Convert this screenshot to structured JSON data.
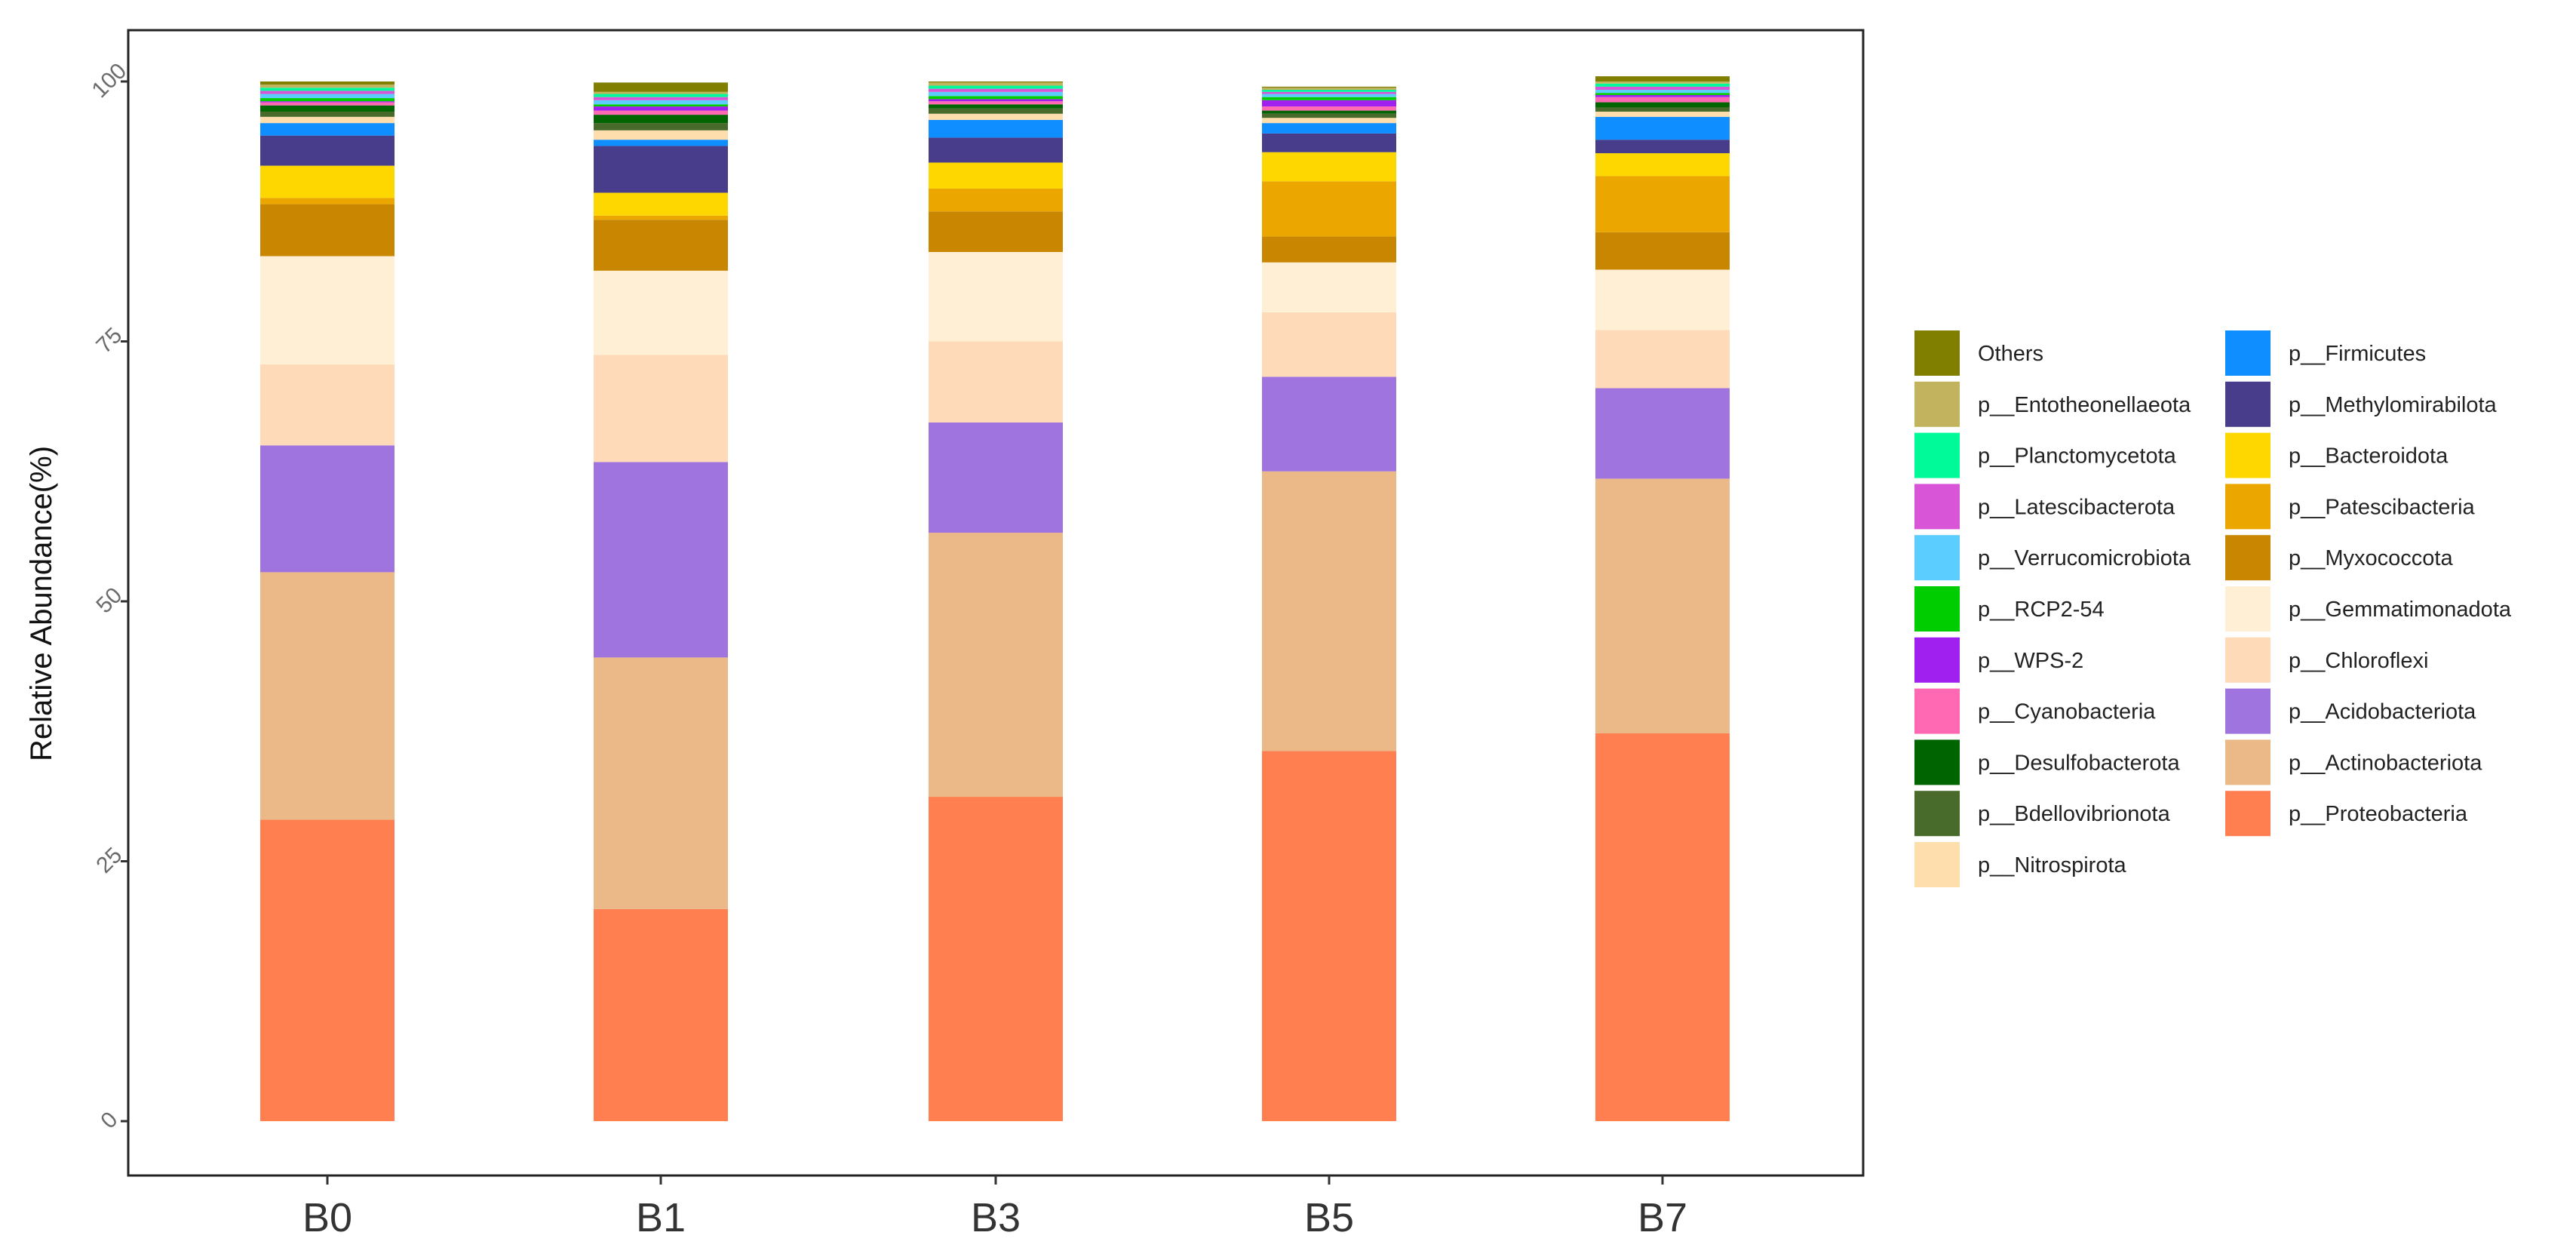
{
  "chart_data": {
    "type": "stacked-bar",
    "title": "",
    "xlabel": "",
    "ylabel": "Relative Abundance(%)",
    "ylim": [
      0,
      100
    ],
    "yticks": [
      "0",
      "25",
      "50",
      "75",
      "100"
    ],
    "categories": [
      "B0",
      "B1",
      "B3",
      "B5",
      "B7"
    ],
    "series": [
      {
        "name": "p__Proteobacteria",
        "color": "#FF7F50",
        "values": [
          29.0,
          20.4,
          31.2,
          35.6,
          37.3
        ]
      },
      {
        "name": "p__Actinobacteriota",
        "color": "#EBB887",
        "values": [
          23.8,
          24.2,
          25.4,
          26.9,
          24.5
        ]
      },
      {
        "name": "p__Acidobacteriota",
        "color": "#A074DE",
        "values": [
          12.2,
          18.8,
          10.6,
          9.1,
          8.7
        ]
      },
      {
        "name": "p__Chloroflexi",
        "color": "#FFDAB9",
        "values": [
          7.8,
          10.3,
          7.8,
          6.2,
          5.6
        ]
      },
      {
        "name": "p__Gemmatimonadota",
        "color": "#FFEFD5",
        "values": [
          10.4,
          8.1,
          8.6,
          4.8,
          5.8
        ]
      },
      {
        "name": "p__Myxococcota",
        "color": "#C98600",
        "values": [
          5.0,
          4.9,
          3.9,
          2.5,
          3.6
        ]
      },
      {
        "name": "p__Patescibacteria",
        "color": "#EBA600",
        "values": [
          0.6,
          0.4,
          2.2,
          5.3,
          5.4
        ]
      },
      {
        "name": "p__Bacteroidota",
        "color": "#FFD700",
        "values": [
          3.1,
          2.2,
          2.5,
          2.8,
          2.2
        ]
      },
      {
        "name": "p__Methylomirabilota",
        "color": "#483D8B",
        "values": [
          2.9,
          4.5,
          2.4,
          1.8,
          1.3
        ]
      },
      {
        "name": "p__Firmicutes",
        "color": "#0F8FFF",
        "values": [
          1.2,
          0.6,
          1.7,
          1.0,
          2.2
        ]
      },
      {
        "name": "p__Nitrospirota",
        "color": "#FFDEAD",
        "values": [
          0.6,
          0.9,
          0.6,
          0.5,
          0.5
        ]
      },
      {
        "name": "p__Bdellovibrionota",
        "color": "#486A2A",
        "values": [
          0.5,
          0.7,
          0.5,
          0.4,
          0.4
        ]
      },
      {
        "name": "p__Desulfobacterota",
        "color": "#006400",
        "values": [
          0.6,
          0.8,
          0.4,
          0.3,
          0.5
        ]
      },
      {
        "name": "p__Cyanobacteria",
        "color": "#FF69B4",
        "values": [
          0.3,
          0.4,
          0.3,
          0.4,
          0.5
        ]
      },
      {
        "name": "p__WPS-2",
        "color": "#A020F0",
        "values": [
          0.1,
          0.4,
          0.2,
          0.6,
          0.2
        ]
      },
      {
        "name": "p__RCP2-54",
        "color": "#00CD00",
        "values": [
          0.3,
          0.2,
          0.3,
          0.3,
          0.2
        ]
      },
      {
        "name": "p__Verrucomicrobiota",
        "color": "#5CCDFF",
        "values": [
          0.4,
          0.4,
          0.4,
          0.3,
          0.3
        ]
      },
      {
        "name": "p__Latescibacterota",
        "color": "#D855D8",
        "values": [
          0.3,
          0.3,
          0.3,
          0.2,
          0.3
        ]
      },
      {
        "name": "p__Planctomycetota",
        "color": "#00FA9A",
        "values": [
          0.3,
          0.3,
          0.3,
          0.2,
          0.3
        ]
      },
      {
        "name": "p__Entotheonellaeota",
        "color": "#C2B45E",
        "values": [
          0.3,
          0.2,
          0.3,
          0.2,
          0.2
        ]
      },
      {
        "name": "Others",
        "color": "#807F00",
        "values": [
          0.3,
          0.9,
          0.1,
          0.1,
          0.5
        ]
      }
    ],
    "legend": {
      "placement": "right",
      "columns": [
        [
          "Others",
          "p__Entotheonellaeota",
          "p__Planctomycetota",
          "p__Latescibacterota",
          "p__Verrucomicrobiota",
          "p__RCP2-54",
          "p__WPS-2",
          "p__Cyanobacteria",
          "p__Desulfobacterota",
          "p__Bdellovibrionota",
          "p__Nitrospirota"
        ],
        [
          "p__Firmicutes",
          "p__Methylomirabilota",
          "p__Bacteroidota",
          "p__Patescibacteria",
          "p__Myxococcota",
          "p__Gemmatimonadota",
          "p__Chloroflexi",
          "p__Acidobacteriota",
          "p__Actinobacteriota",
          "p__Proteobacteria"
        ]
      ]
    }
  }
}
